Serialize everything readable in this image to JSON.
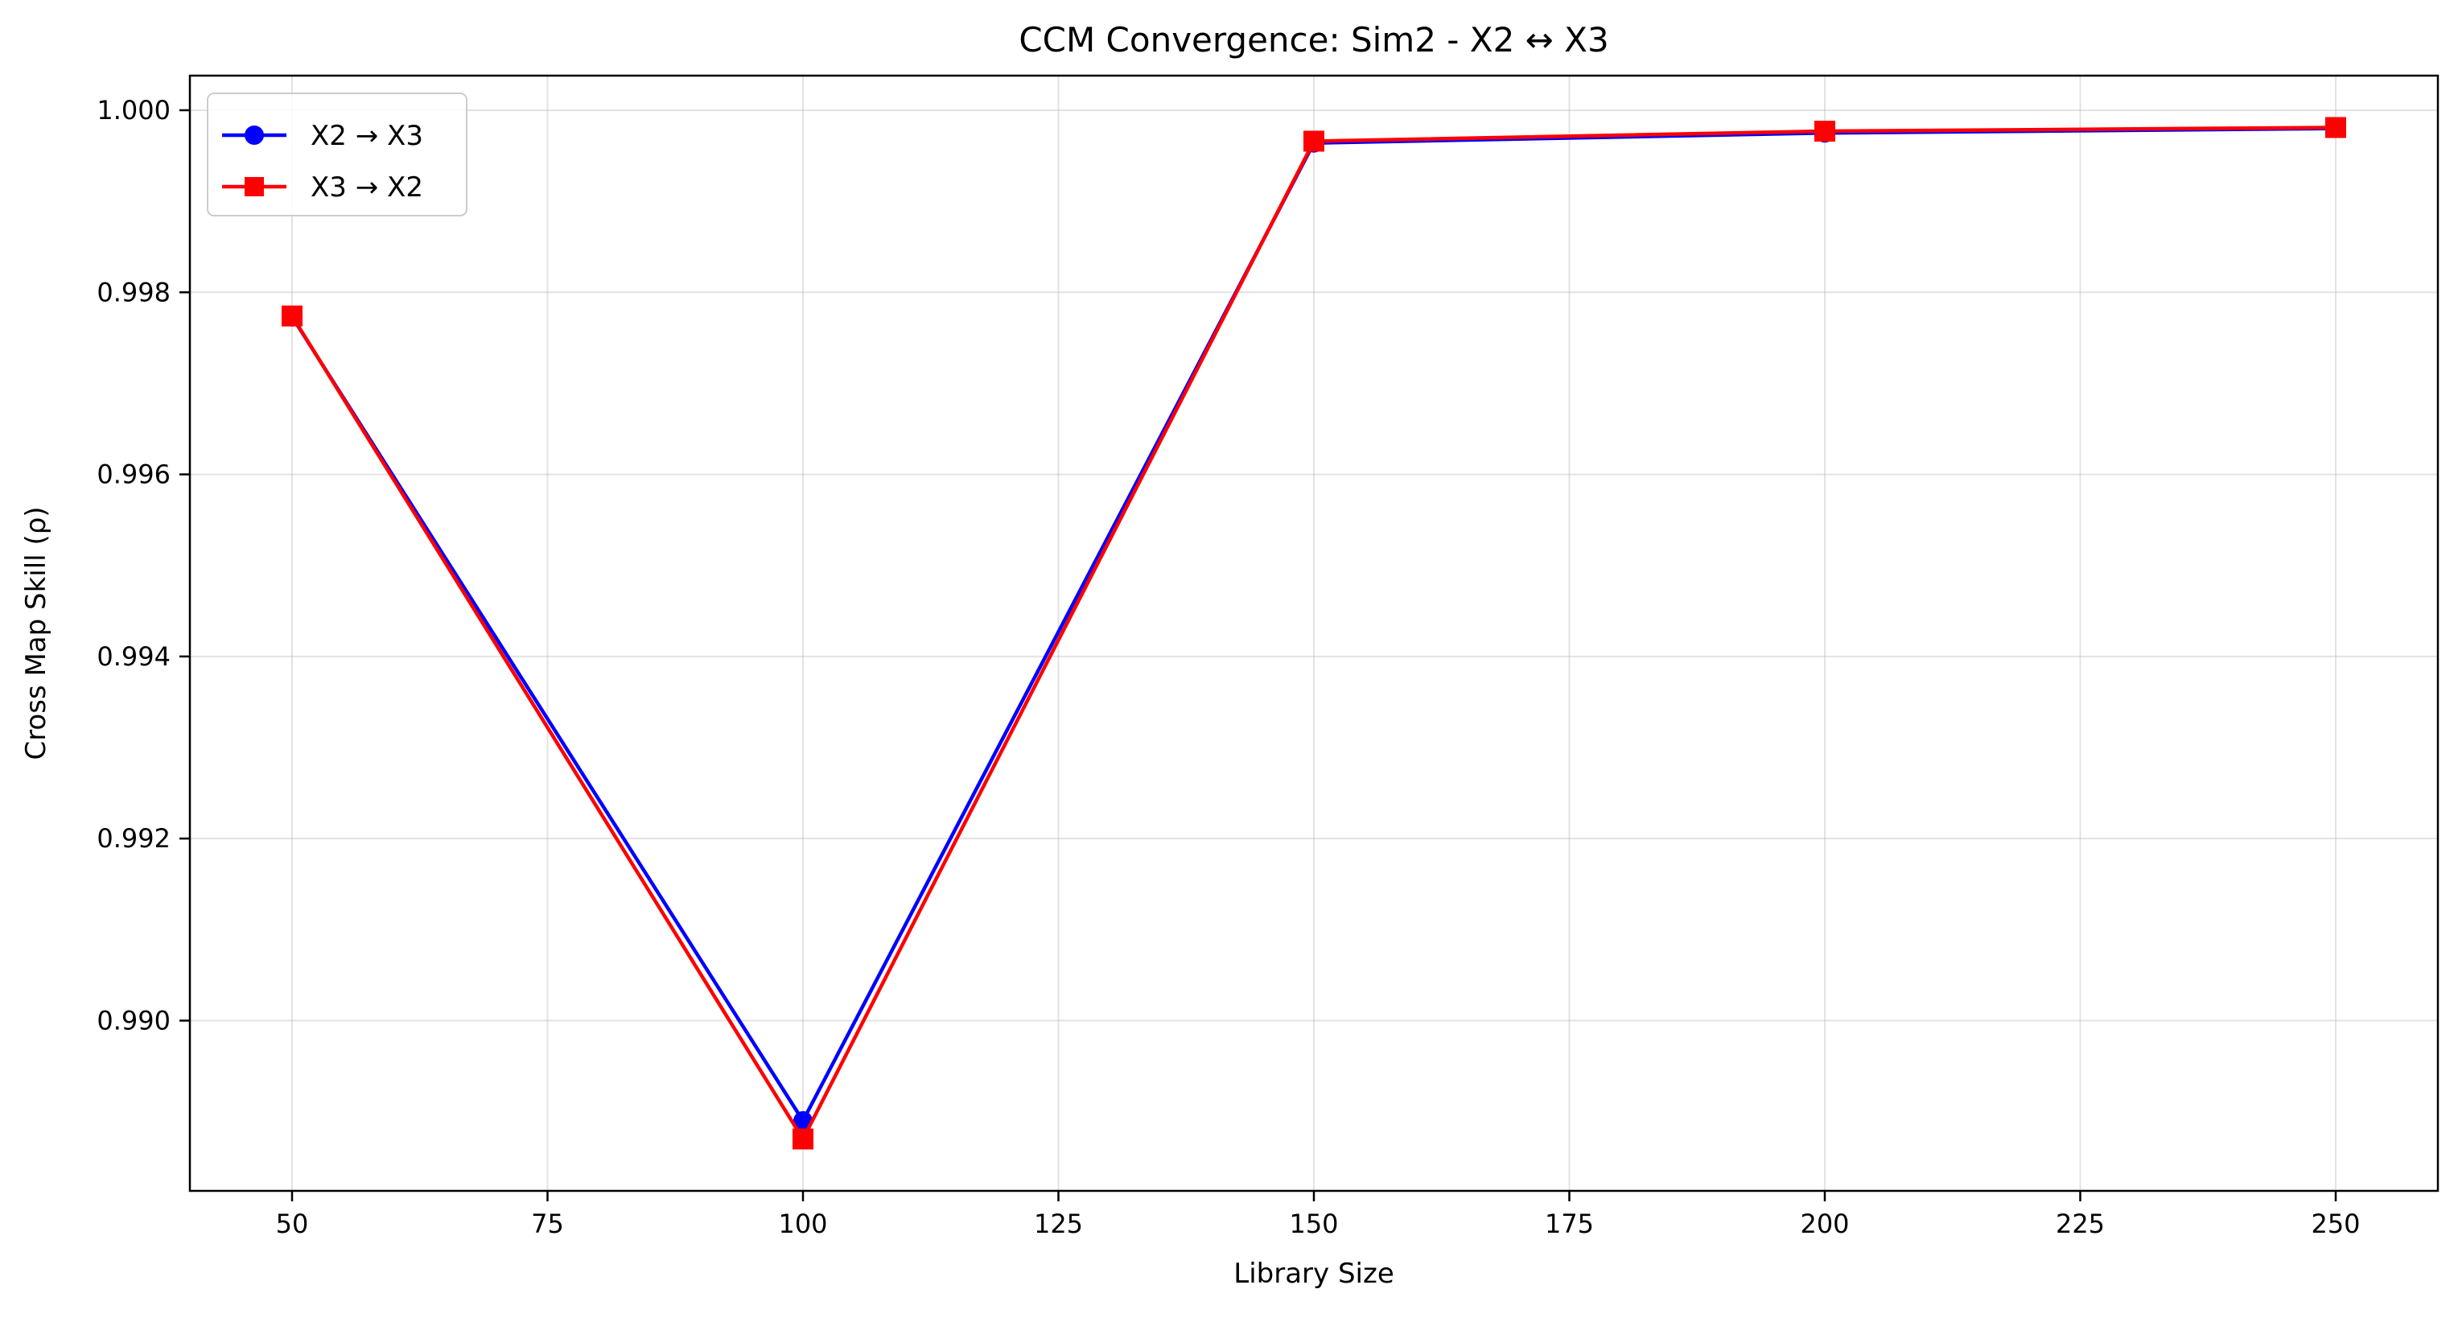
{
  "chart_data": {
    "type": "line",
    "title": "CCM Convergence: Sim2 - X2 ↔ X3",
    "xlabel": "Library Size",
    "ylabel": "Cross Map Skill (ρ)",
    "x": [
      50,
      100,
      150,
      200,
      250
    ],
    "xlim": [
      40,
      260
    ],
    "ylim": [
      0.98813,
      1.00038
    ],
    "x_ticks": [
      50,
      75,
      100,
      125,
      150,
      175,
      200,
      225,
      250
    ],
    "y_ticks": [
      0.99,
      0.992,
      0.994,
      0.996,
      0.998,
      1.0
    ],
    "x_tick_labels": [
      "50",
      "75",
      "100",
      "125",
      "150",
      "175",
      "200",
      "225",
      "250"
    ],
    "y_tick_labels": [
      "0.990",
      "0.992",
      "0.994",
      "0.996",
      "0.998",
      "1.000"
    ],
    "grid": true,
    "legend_position": "top-left",
    "series": [
      {
        "name": "X2 → X3",
        "color": "#0000ff",
        "marker": "circle",
        "values": [
          0.99773,
          0.9889,
          0.99964,
          0.99975,
          0.9998
        ]
      },
      {
        "name": "X3 → X2",
        "color": "#ff0000",
        "marker": "square",
        "values": [
          0.99774,
          0.9887,
          0.99966,
          0.99977,
          0.99981
        ]
      }
    ]
  }
}
